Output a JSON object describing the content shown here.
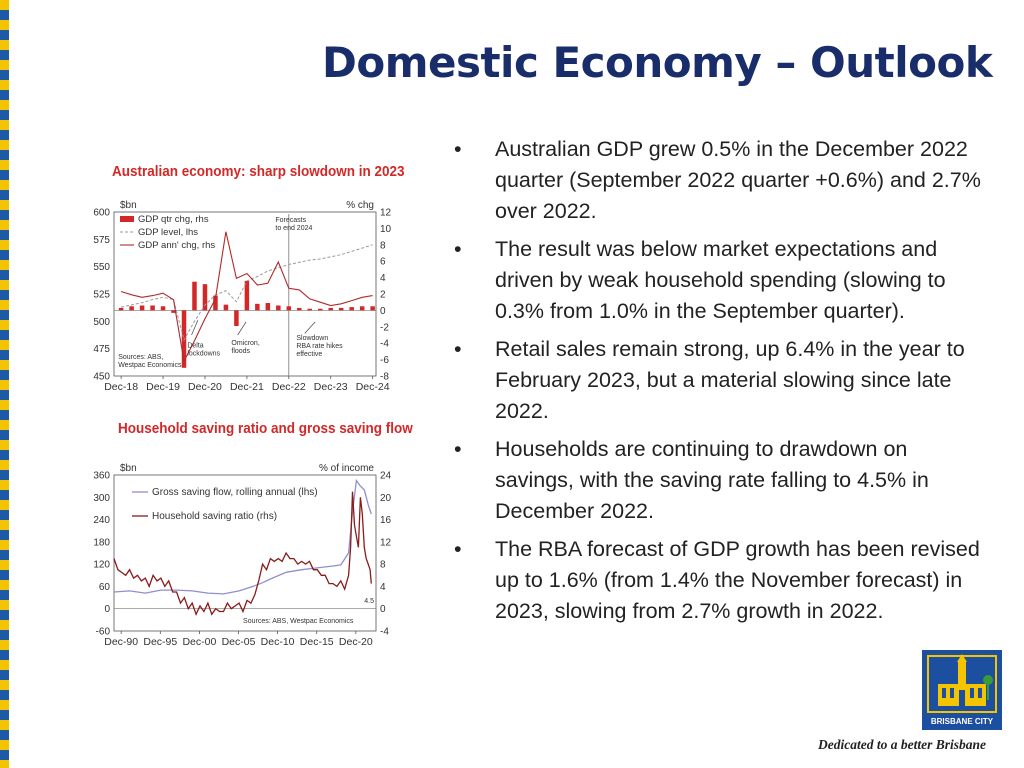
{
  "slide": {
    "title": "Domestic Economy – Outlook",
    "bullets": [
      "Australian GDP grew 0.5% in the December 2022 quarter (September 2022 quarter +0.6%) and 2.7% over 2022.",
      "The result was below market expectations and driven by weak household spending (slowing to 0.3% from 1.0% in the September quarter).",
      "Retail sales remain strong, up 6.4% in the year to February 2023, but a material slowing since late 2022.",
      "Households are continuing to drawdown on savings, with the saving rate falling to 4.5% in December 2022.",
      "The RBA forecast of GDP growth has been revised up to 1.6% (from 1.4% the November forecast) in 2023, slowing from 2.7% growth in 2022."
    ],
    "bullet_symbol": "•",
    "logo_text": "BRISBANE CITY",
    "tagline": "Dedicated to a better Brisbane",
    "colors": {
      "title": "#1a2d6b",
      "chart_title": "#d22828",
      "bar": "#d22828",
      "line": "#b02a2a",
      "level": "#9a9a9a",
      "saving_flow": "#8f8fd0",
      "saving_ratio": "#8b1a1a"
    }
  },
  "chart_data": [
    {
      "type": "bar",
      "title": "Australian economy: sharp slowdown in 2023",
      "left_unit": "$bn",
      "right_unit": "% chg",
      "left_axis": {
        "range": [
          450,
          600
        ],
        "ticks": [
          600,
          575,
          550,
          525,
          500,
          475,
          450
        ]
      },
      "right_axis": {
        "range": [
          -8,
          12
        ],
        "ticks": [
          12,
          10,
          8,
          6,
          4,
          2,
          0,
          -2,
          -4,
          -6,
          -8
        ]
      },
      "x_range": [
        2018.75,
        2025.0
      ],
      "x_ticks": [
        {
          "label": "Dec-18",
          "x": 2018.92
        },
        {
          "label": "Dec-19",
          "x": 2019.92
        },
        {
          "label": "Dec-20",
          "x": 2020.92
        },
        {
          "label": "Dec-21",
          "x": 2021.92
        },
        {
          "label": "Dec-22",
          "x": 2022.92
        },
        {
          "label": "Dec-23",
          "x": 2023.92
        },
        {
          "label": "Dec-24",
          "x": 2024.92
        }
      ],
      "legend": [
        "GDP qtr chg, rhs",
        "GDP level, lhs",
        "GDP ann' chg, rhs"
      ],
      "series": [
        {
          "name": "GDP qtr chg, rhs",
          "kind": "bar",
          "axis": "right",
          "x": [
            2018.92,
            2019.17,
            2019.42,
            2019.67,
            2019.92,
            2020.17,
            2020.42,
            2020.67,
            2020.92,
            2021.17,
            2021.42,
            2021.67,
            2021.92,
            2022.17,
            2022.42,
            2022.67,
            2022.92,
            2023.17,
            2023.42,
            2023.67,
            2023.92,
            2024.17,
            2024.42,
            2024.67,
            2024.92
          ],
          "y": [
            0.3,
            0.5,
            0.6,
            0.6,
            0.5,
            -0.3,
            -7.0,
            3.5,
            3.2,
            1.8,
            0.7,
            -1.9,
            3.6,
            0.8,
            0.9,
            0.6,
            0.5,
            0.3,
            0.2,
            0.2,
            0.3,
            0.3,
            0.4,
            0.5,
            0.5
          ]
        },
        {
          "name": "GDP level, lhs",
          "kind": "line",
          "axis": "left",
          "x": [
            2018.92,
            2019.17,
            2019.42,
            2019.67,
            2019.92,
            2020.17,
            2020.42,
            2020.67,
            2020.92,
            2021.17,
            2021.42,
            2021.67,
            2021.92,
            2022.17,
            2022.42,
            2022.67,
            2022.92,
            2023.17,
            2023.42,
            2023.67,
            2023.92,
            2024.17,
            2024.42,
            2024.67,
            2024.92
          ],
          "y": [
            513,
            515,
            517,
            520,
            522,
            520,
            483,
            500,
            515,
            524,
            528,
            518,
            537,
            541,
            546,
            549,
            552,
            554,
            556,
            557,
            559,
            561,
            564,
            567,
            570
          ]
        },
        {
          "name": "GDP ann' chg, rhs",
          "kind": "line",
          "axis": "right",
          "x": [
            2018.92,
            2019.17,
            2019.42,
            2019.67,
            2019.92,
            2020.17,
            2020.42,
            2020.67,
            2020.92,
            2021.17,
            2021.42,
            2021.67,
            2021.92,
            2022.17,
            2022.42,
            2022.67,
            2022.92,
            2023.17,
            2023.42,
            2023.67,
            2023.92,
            2024.17,
            2024.42,
            2024.67,
            2024.92
          ],
          "y": [
            2.3,
            1.9,
            1.6,
            1.8,
            2.1,
            1.3,
            -6.2,
            -3.7,
            -1.0,
            1.4,
            9.6,
            3.9,
            4.5,
            3.1,
            3.3,
            5.9,
            2.7,
            2.5,
            1.4,
            1.0,
            0.6,
            0.8,
            1.2,
            1.6,
            1.8
          ]
        }
      ],
      "annotations": [
        {
          "text": [
            "Forecasts",
            "to end 2024"
          ],
          "x": 2022.6,
          "y": 10.8
        },
        {
          "text": [
            "Delta",
            "lockdowns"
          ],
          "x": 2020.5,
          "y": -4.5
        },
        {
          "text": [
            "Omicron,",
            "floods"
          ],
          "x": 2021.55,
          "y": -4.2
        },
        {
          "text": [
            "Slowdown",
            "RBA rate hikes",
            "effective"
          ],
          "x": 2023.1,
          "y": -3.6
        },
        {
          "text": [
            "Sources: ABS,",
            "Westpac Economics"
          ],
          "x": 2018.85,
          "y": -5.9
        }
      ],
      "forecast_start": 2022.92
    },
    {
      "type": "line",
      "title": "Household saving ratio and gross saving flow",
      "left_unit": "$bn",
      "right_unit": "% of income",
      "left_axis": {
        "range": [
          -60,
          360
        ],
        "ticks": [
          360,
          300,
          240,
          180,
          120,
          60,
          0,
          -60
        ]
      },
      "right_axis": {
        "range": [
          -4,
          24
        ],
        "ticks": [
          24,
          20,
          16,
          12,
          8,
          4,
          0,
          -4
        ]
      },
      "x_range": [
        1990.0,
        2023.5
      ],
      "x_ticks": [
        {
          "label": "Dec-90",
          "x": 1990.92
        },
        {
          "label": "Dec-95",
          "x": 1995.92
        },
        {
          "label": "Dec-00",
          "x": 2000.92
        },
        {
          "label": "Dec-05",
          "x": 2005.92
        },
        {
          "label": "Dec-10",
          "x": 2010.92
        },
        {
          "label": "Dec-15",
          "x": 2015.92
        },
        {
          "label": "Dec-20",
          "x": 2020.92
        }
      ],
      "legend": [
        "Gross saving flow, rolling annual (lhs)",
        "Household saving ratio (rhs)"
      ],
      "series": [
        {
          "name": "Gross saving flow, rolling annual (lhs)",
          "axis": "left",
          "x": [
            1990,
            1992,
            1994,
            1996,
            1998,
            2000,
            2002,
            2004,
            2006,
            2008,
            2009,
            2010,
            2012,
            2014,
            2016,
            2018,
            2019,
            2020,
            2020.5,
            2021,
            2021.5,
            2022,
            2022.5,
            2022.9
          ],
          "y": [
            45,
            48,
            42,
            50,
            50,
            48,
            42,
            40,
            48,
            62,
            70,
            80,
            98,
            105,
            110,
            115,
            118,
            150,
            260,
            345,
            330,
            320,
            280,
            255
          ]
        },
        {
          "name": "Household saving ratio (rhs)",
          "axis": "right",
          "x": [
            1990,
            1990.5,
            1991,
            1991.5,
            1992,
            1992.5,
            1993,
            1993.5,
            1994,
            1994.5,
            1995,
            1995.5,
            1996,
            1996.5,
            1997,
            1997.5,
            1998,
            1998.5,
            1999,
            1999.5,
            2000,
            2000.5,
            2001,
            2001.5,
            2002,
            2002.5,
            2003,
            2003.5,
            2004,
            2004.5,
            2005,
            2005.5,
            2006,
            2006.5,
            2007,
            2007.5,
            2008,
            2008.5,
            2009,
            2009.5,
            2010,
            2010.5,
            2011,
            2011.5,
            2012,
            2012.5,
            2013,
            2013.5,
            2014,
            2014.5,
            2015,
            2015.5,
            2016,
            2016.5,
            2017,
            2017.5,
            2018,
            2018.5,
            2019,
            2019.5,
            2020,
            2020.25,
            2020.5,
            2020.75,
            2021,
            2021.25,
            2021.5,
            2021.75,
            2022,
            2022.25,
            2022.5,
            2022.75,
            2022.9
          ],
          "y": [
            9,
            7,
            6.5,
            6,
            7,
            5.5,
            6,
            5,
            5.5,
            4,
            6,
            5,
            5.5,
            4,
            5,
            3,
            3,
            1,
            2,
            0,
            1,
            -1,
            0.5,
            -0.5,
            1,
            -1,
            0,
            -0.5,
            -0.5,
            1,
            0,
            0.5,
            1,
            -0.5,
            1.5,
            1,
            2.5,
            5,
            8,
            7,
            9,
            8.5,
            9,
            8.5,
            10,
            9,
            9,
            8,
            8.5,
            8,
            8.5,
            7,
            7,
            6,
            6,
            4.5,
            4.5,
            4,
            5,
            3.5,
            6,
            11,
            21,
            15,
            13,
            11,
            20,
            17,
            11,
            9,
            8,
            7,
            4.5
          ]
        }
      ],
      "annotations": [
        {
          "text": [
            "4.5"
          ],
          "x": 2022.0,
          "y": 1.0
        },
        {
          "text": [
            "Sources: ABS, Westpac Economics"
          ],
          "x": 2006.5,
          "y": -2.6
        }
      ]
    }
  ]
}
